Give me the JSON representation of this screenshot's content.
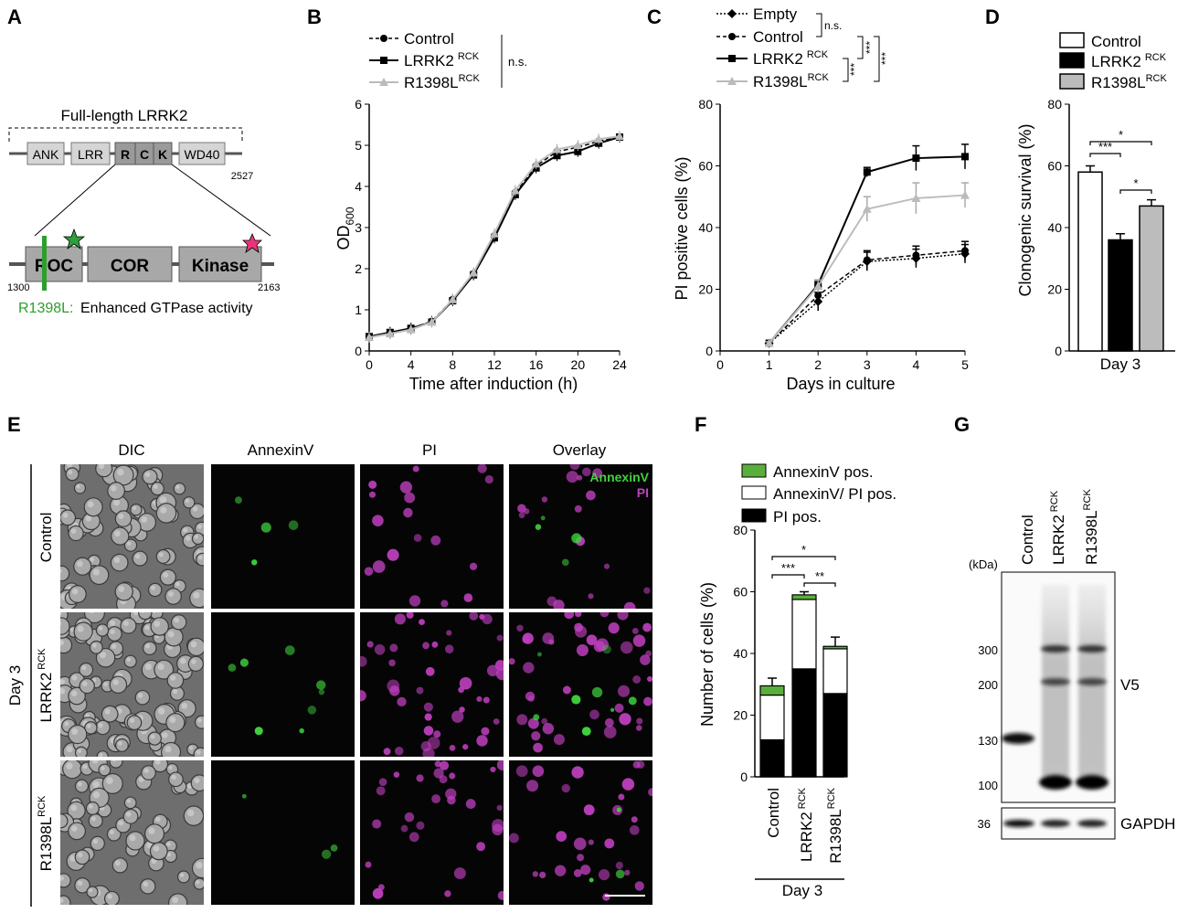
{
  "panels": {
    "A": "A",
    "B": "B",
    "C": "C",
    "D": "D",
    "E": "E",
    "F": "F",
    "G": "G"
  },
  "panelA": {
    "title": "Full-length LRRK2",
    "domains": [
      "ANK",
      "LRR",
      "R",
      "C",
      "K",
      "WD40"
    ],
    "end": "2527",
    "zoom_domains": [
      "ROC",
      "COR",
      "Kinase"
    ],
    "zoom_start": "1300",
    "zoom_end": "2163",
    "mutation_label": "R1398L:",
    "mutation_desc": "Enhanced GTPase activity",
    "colors": {
      "mutation": "#2aa02a",
      "star_green": "#2e9e3e",
      "star_pink": "#e8357a",
      "domain": "#bdbdbd",
      "domain_dark": "#9a9a9a"
    }
  },
  "panelB": {
    "legend": [
      "Control",
      "LRRK2",
      "R1398L"
    ],
    "legend_sup": "RCK",
    "sig": "n.s.",
    "xlabel": "Time after induction (h)",
    "ylabel": "OD",
    "ylabel_sub": "600",
    "xticks": [
      "0",
      "4",
      "8",
      "12",
      "16",
      "20",
      "24"
    ],
    "yticks": [
      "0",
      "1",
      "2",
      "3",
      "4",
      "5",
      "6"
    ]
  },
  "panelC": {
    "legend": [
      "Empty",
      "Control",
      "LRRK2",
      "R1398L"
    ],
    "legend_sup": "RCK",
    "sig": [
      "n.s.",
      "***",
      "***",
      "***"
    ],
    "xlabel": "Days in culture",
    "ylabel": "PI positive cells (%)",
    "xticks": [
      "0",
      "1",
      "2",
      "3",
      "4",
      "5"
    ],
    "yticks": [
      "0",
      "20",
      "40",
      "60",
      "80"
    ]
  },
  "panelD": {
    "legend": [
      "Control",
      "LRRK2",
      "R1398L"
    ],
    "legend_sup": "RCK",
    "ylabel": "Clonogenic survival (%)",
    "xlabel": "Day 3",
    "yticks": [
      "0",
      "20",
      "40",
      "60",
      "80"
    ],
    "sig": [
      "*",
      "***",
      "*"
    ]
  },
  "panelE": {
    "cols": [
      "DIC",
      "AnnexinV",
      "PI",
      "Overlay"
    ],
    "rows": [
      "Control",
      "LRRK2",
      "R1398L"
    ],
    "row_sup": "RCK",
    "side": "Day 3",
    "overlay_legend": [
      "AnnexinV",
      "PI"
    ],
    "colors": {
      "annexin": "#3fd23f",
      "pi": "#c040c0"
    }
  },
  "panelF": {
    "legend": [
      "AnnexinV pos.",
      "AnnexinV/ PI pos.",
      "PI pos."
    ],
    "ylabel": "Number of cells (%)",
    "yticks": [
      "0",
      "20",
      "40",
      "60",
      "80"
    ],
    "categories": [
      "Control",
      "LRRK2",
      "R1398L"
    ],
    "cat_sup": "RCK",
    "xlabel": "Day 3",
    "sig": [
      "*",
      "***",
      "**"
    ],
    "colors": {
      "annexin": "#5aaf3c",
      "double": "#ffffff",
      "pi": "#000000"
    }
  },
  "panelG": {
    "kda": "(kDa)",
    "lanes": [
      "Control",
      "LRRK2",
      "R1398L"
    ],
    "lane_sup": "RCK",
    "markers": [
      "300",
      "200",
      "130",
      "100"
    ],
    "gapdh_marker": "36",
    "labels": [
      "V5",
      "GAPDH"
    ]
  },
  "chart_data": [
    {
      "type": "line",
      "title": "",
      "xlabel": "Time after induction (h)",
      "ylabel": "OD600",
      "xlim": [
        0,
        24
      ],
      "ylim": [
        0,
        6
      ],
      "x": [
        0,
        2,
        4,
        6,
        8,
        10,
        12,
        14,
        16,
        18,
        20,
        22,
        24
      ],
      "series": [
        {
          "name": "Control",
          "values": [
            0.35,
            0.45,
            0.55,
            0.72,
            1.25,
            1.88,
            2.8,
            3.85,
            4.5,
            4.85,
            4.95,
            5.1,
            5.2
          ],
          "style": "dashed-circle"
        },
        {
          "name": "LRRK2 RCK",
          "values": [
            0.35,
            0.45,
            0.55,
            0.7,
            1.22,
            1.85,
            2.75,
            3.8,
            4.45,
            4.75,
            4.85,
            5.05,
            5.2
          ],
          "style": "solid-square"
        },
        {
          "name": "R1398L RCK",
          "values": [
            0.33,
            0.42,
            0.52,
            0.7,
            1.25,
            1.9,
            2.85,
            3.9,
            4.55,
            4.9,
            5.0,
            5.15,
            5.22
          ],
          "style": "gray-triangle"
        }
      ]
    },
    {
      "type": "line",
      "title": "",
      "xlabel": "Days in culture",
      "ylabel": "PI positive cells (%)",
      "xlim": [
        0,
        5
      ],
      "ylim": [
        0,
        80
      ],
      "x": [
        1,
        2,
        3,
        4,
        5
      ],
      "series": [
        {
          "name": "Empty",
          "values": [
            2.5,
            16,
            29,
            30,
            31.5
          ],
          "style": "dotted-diamond"
        },
        {
          "name": "Control",
          "values": [
            2.5,
            18,
            29.5,
            31,
            32.5
          ],
          "style": "dashed-circle"
        },
        {
          "name": "LRRK2 RCK",
          "values": [
            2.5,
            21.5,
            58,
            62.5,
            63
          ],
          "style": "solid-square"
        },
        {
          "name": "R1398L RCK",
          "values": [
            2.5,
            21,
            46,
            49.5,
            50.5
          ],
          "style": "gray-triangle"
        }
      ]
    },
    {
      "type": "bar",
      "title": "",
      "xlabel": "Day 3",
      "ylabel": "Clonogenic survival (%)",
      "ylim": [
        0,
        80
      ],
      "categories": [
        "Control",
        "LRRK2 RCK",
        "R1398L RCK"
      ],
      "values": [
        58,
        36,
        47
      ],
      "errors": [
        2,
        2,
        2
      ]
    },
    {
      "type": "bar",
      "title": "",
      "xlabel": "Day 3",
      "ylabel": "Number of cells (%)",
      "ylim": [
        0,
        80
      ],
      "categories": [
        "Control",
        "LRRK2 RCK",
        "R1398L RCK"
      ],
      "stacked": true,
      "series": [
        {
          "name": "PI pos.",
          "values": [
            12,
            35,
            27
          ]
        },
        {
          "name": "AnnexinV/ PI pos.",
          "values": [
            14.5,
            22.5,
            14.5
          ]
        },
        {
          "name": "AnnexinV pos.",
          "values": [
            3,
            1.5,
            0.8
          ]
        }
      ],
      "totals": [
        29.5,
        59,
        42.3
      ],
      "errors": [
        2.5,
        1,
        3
      ]
    }
  ]
}
